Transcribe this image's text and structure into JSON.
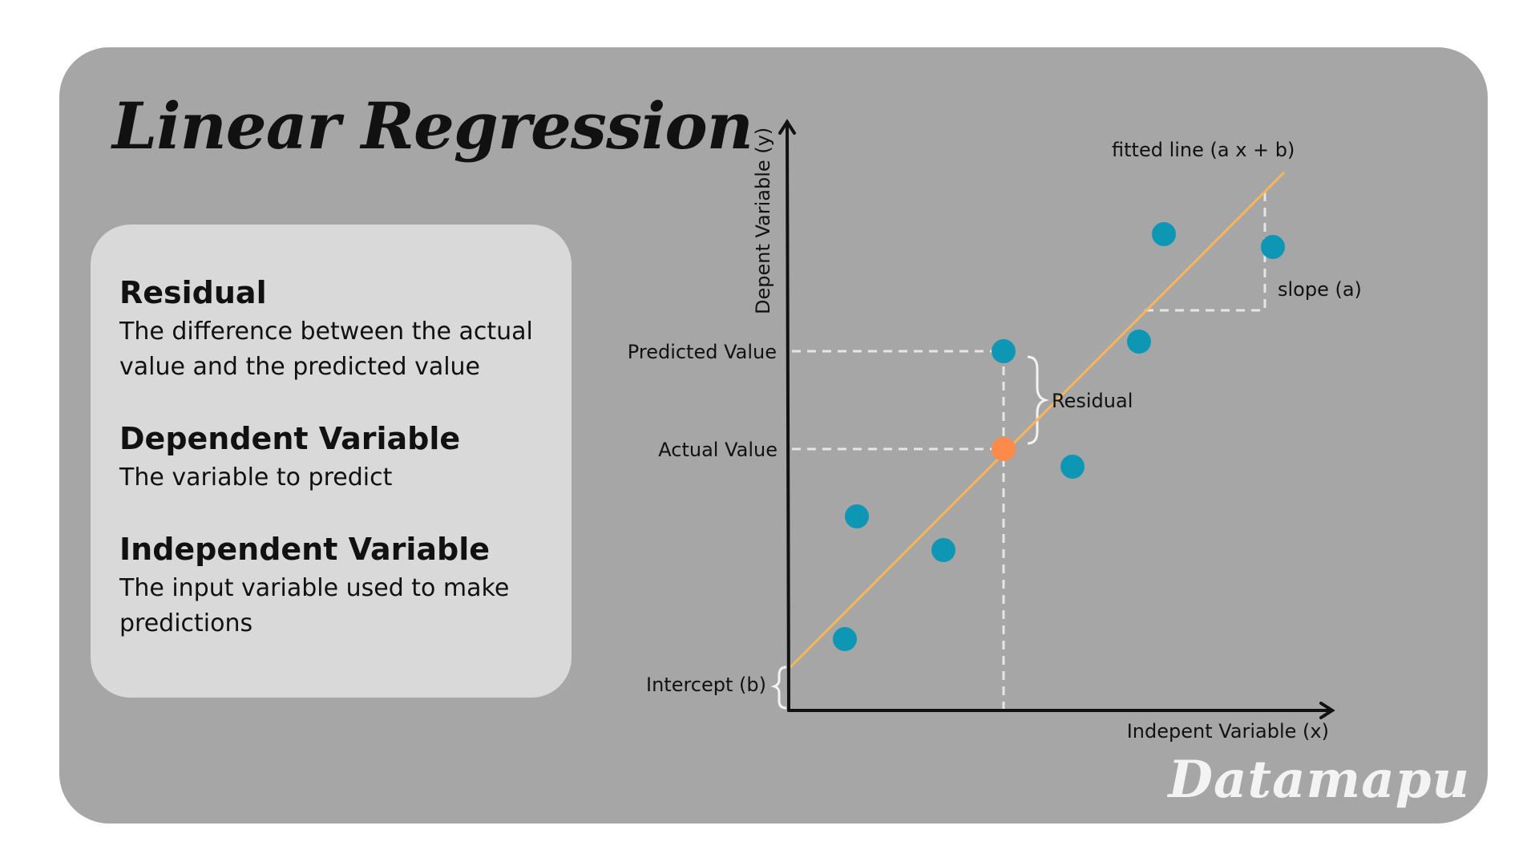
{
  "title": "Linear Regression",
  "glossary": [
    {
      "term": "Residual",
      "definition": "The difference between the actual value and the predicted value"
    },
    {
      "term": "Dependent Variable",
      "definition": "The variable to predict"
    },
    {
      "term": "Independent Variable",
      "definition": "The input variable used to make predictions"
    }
  ],
  "diagram": {
    "y_axis_label": "Depent Variable (y)",
    "x_axis_label": "Indepent Variable (x)",
    "fitted_line_label": "fitted line (a x + b)",
    "slope_label": "slope  (a)",
    "predicted_value_label": "Predicted Value",
    "actual_value_label": "Actual Value",
    "residual_label": "Residual",
    "intercept_label": "Intercept (b)"
  },
  "colors": {
    "background": "#a6a6a6",
    "panel": "#d9d9d9",
    "data_point": "#0e97b5",
    "fitted_line": "#f5b75a",
    "highlight_point": "#fb8a4b",
    "guide_lines": "#e6e6e6",
    "watermark": "#f3f3f3"
  },
  "watermark": "Datamapu"
}
